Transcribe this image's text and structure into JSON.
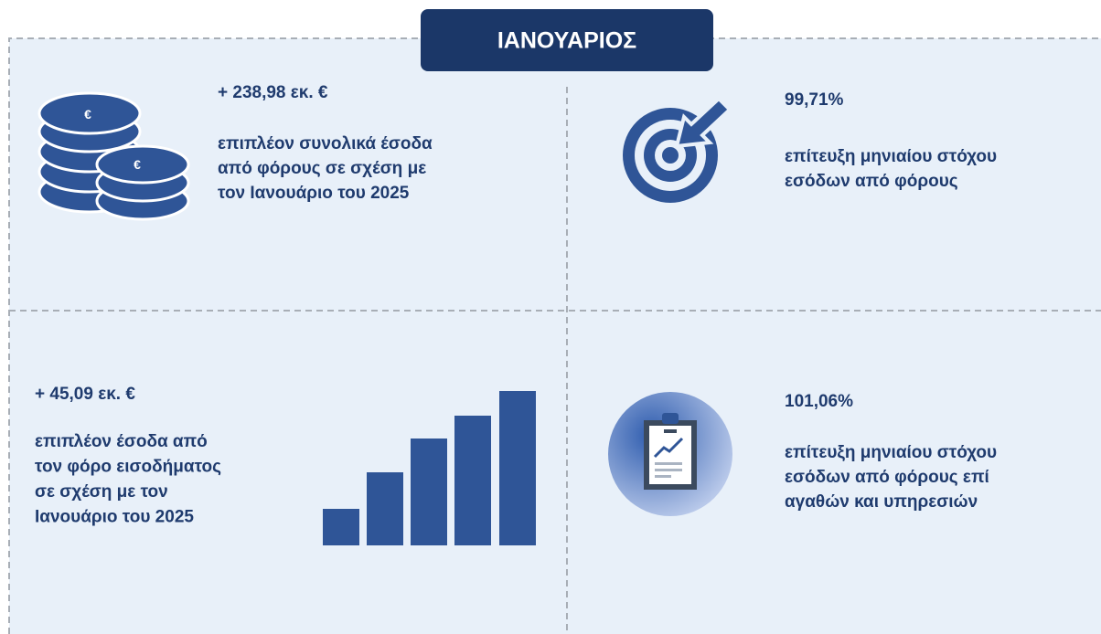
{
  "header": {
    "title": "ΙΑΝΟΥΑΡΙΟΣ"
  },
  "panels": [
    {
      "value": "+ 238,98 εκ. €",
      "description": [
        "επιπλέον συνολικά έσοδα",
        "από φόρους σε σχέση με",
        "τον Ιανουάριο του 2025"
      ]
    },
    {
      "value": "99,71%",
      "description": [
        "επίτευξη μηνιαίου στόχου",
        "εσόδων από φόρους"
      ]
    },
    {
      "value": "+ 45,09 εκ. €",
      "description": [
        "επιπλέον έσοδα από",
        "τον φόρο εισοδήματος",
        "σε σχέση με τον",
        "Ιανουάριο του 2025"
      ]
    },
    {
      "value": "101,06%",
      "description": [
        "επίτευξη μηνιαίου στόχου",
        "εσόδων από φόρους επί",
        "αγαθών και υπηρεσιών"
      ]
    }
  ]
}
